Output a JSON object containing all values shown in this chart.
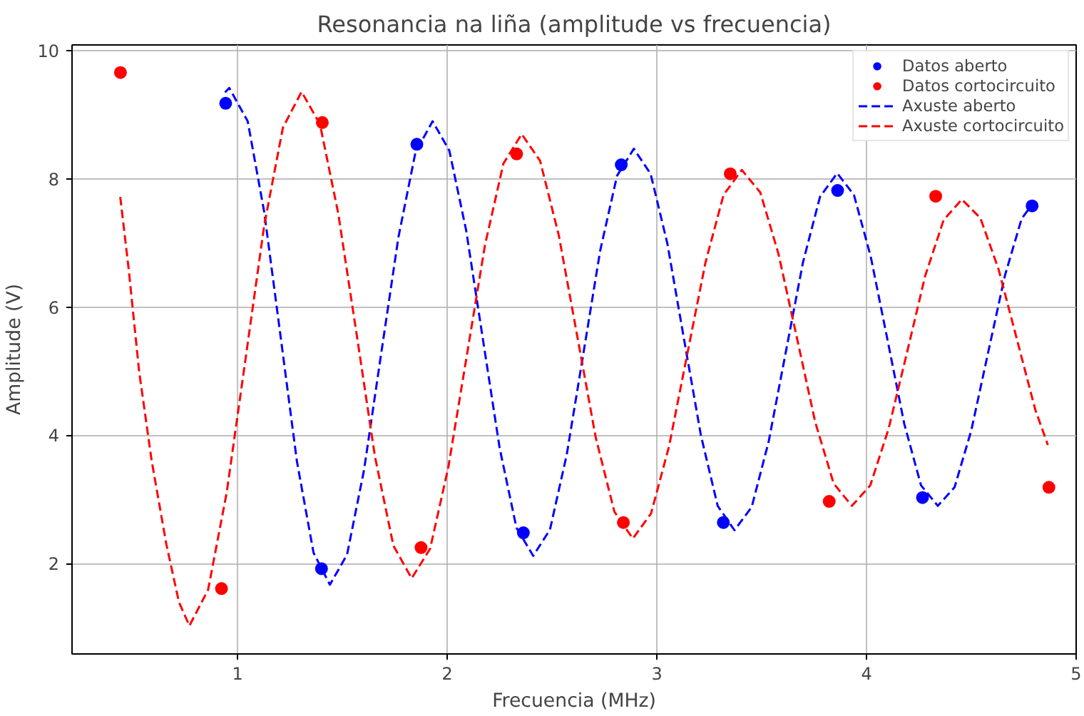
{
  "chart_data": {
    "type": "scatter",
    "title": "Resonancia na liña (amplitude vs frecuencia)",
    "xlabel": "Frecuencia (MHz)",
    "ylabel": "Amplitude (V)",
    "xlim": [
      0.21,
      5.0
    ],
    "ylim": [
      0.59,
      10.09
    ],
    "xticks": [
      1,
      2,
      3,
      4,
      5
    ],
    "yticks": [
      2,
      4,
      6,
      8,
      10
    ],
    "grid": true,
    "legend": "top right",
    "series": [
      {
        "name": "Datos aberto",
        "marker": "circle",
        "color": "#0000ff",
        "x": [
          0.943,
          1.4,
          1.855,
          2.363,
          2.83,
          3.317,
          3.862,
          4.267,
          4.79
        ],
        "values": [
          9.18,
          1.92,
          8.54,
          2.48,
          8.22,
          2.64,
          7.82,
          3.03,
          7.58
        ]
      },
      {
        "name": "Datos cortocircuito",
        "marker": "circle",
        "color": "#ff0000",
        "x": [
          0.441,
          0.923,
          1.404,
          1.875,
          2.331,
          2.84,
          3.35,
          3.822,
          4.33,
          4.87
        ],
        "values": [
          9.66,
          1.61,
          8.88,
          2.25,
          8.39,
          2.64,
          8.08,
          2.97,
          7.73,
          3.19
        ]
      },
      {
        "name": "Axuste aberto",
        "type": "line",
        "line_style": "dashed",
        "color": "#0000ff",
        "x": [
          0.94,
          0.96,
          1.048,
          1.127,
          1.205,
          1.283,
          1.362,
          1.44,
          1.522,
          1.603,
          1.685,
          1.767,
          1.848,
          1.93,
          2.01,
          2.09,
          2.17,
          2.25,
          2.33,
          2.41,
          2.49,
          2.57,
          2.65,
          2.73,
          2.81,
          2.89,
          2.97,
          3.05,
          3.13,
          3.21,
          3.29,
          3.37,
          3.452,
          3.533,
          3.615,
          3.697,
          3.778,
          3.86,
          3.94,
          4.02,
          4.1,
          4.18,
          4.26,
          4.34,
          4.42,
          4.5,
          4.58,
          4.66,
          4.74,
          4.79
        ],
        "values": [
          9.35,
          9.42,
          8.9,
          7.48,
          5.54,
          3.59,
          2.17,
          1.67,
          2.14,
          3.46,
          5.28,
          7.09,
          8.41,
          8.9,
          8.44,
          7.2,
          5.5,
          3.8,
          2.56,
          2.12,
          2.53,
          3.7,
          5.29,
          6.89,
          8.05,
          8.47,
          8.08,
          6.99,
          5.49,
          4.0,
          2.9,
          2.52,
          2.88,
          3.9,
          5.3,
          6.7,
          7.72,
          8.09,
          7.75,
          6.79,
          5.49,
          4.18,
          3.22,
          2.9,
          3.19,
          4.08,
          5.29,
          6.49,
          7.38,
          7.6
        ]
      },
      {
        "name": "Axuste cortocircuito",
        "type": "line",
        "line_style": "dashed",
        "color": "#ff0000",
        "x": [
          0.44,
          0.48,
          0.53,
          0.59,
          0.66,
          0.72,
          0.77,
          0.859,
          0.948,
          1.038,
          1.127,
          1.216,
          1.305,
          1.393,
          1.48,
          1.568,
          1.655,
          1.743,
          1.83,
          1.918,
          2.005,
          2.093,
          2.18,
          2.268,
          2.355,
          2.443,
          2.532,
          2.62,
          2.708,
          2.797,
          2.885,
          2.972,
          3.058,
          3.145,
          3.232,
          3.318,
          3.405,
          3.493,
          3.58,
          3.668,
          3.755,
          3.843,
          3.93,
          4.018,
          4.105,
          4.193,
          4.28,
          4.368,
          4.455,
          4.543,
          4.63,
          4.718,
          4.805,
          4.865
        ],
        "values": [
          7.72,
          6.6,
          5.0,
          3.6,
          2.3,
          1.4,
          1.03,
          1.59,
          3.11,
          5.2,
          7.28,
          8.8,
          9.36,
          8.85,
          7.46,
          5.57,
          3.67,
          2.28,
          1.77,
          2.23,
          3.5,
          5.24,
          6.97,
          8.24,
          8.7,
          8.28,
          7.12,
          5.55,
          3.97,
          2.81,
          2.39,
          2.78,
          3.83,
          5.27,
          6.7,
          7.75,
          8.14,
          7.79,
          6.83,
          5.52,
          4.21,
          3.25,
          2.9,
          3.22,
          4.1,
          5.29,
          6.49,
          7.36,
          7.68,
          7.39,
          6.59,
          5.49,
          4.4,
          3.85
        ]
      }
    ]
  }
}
